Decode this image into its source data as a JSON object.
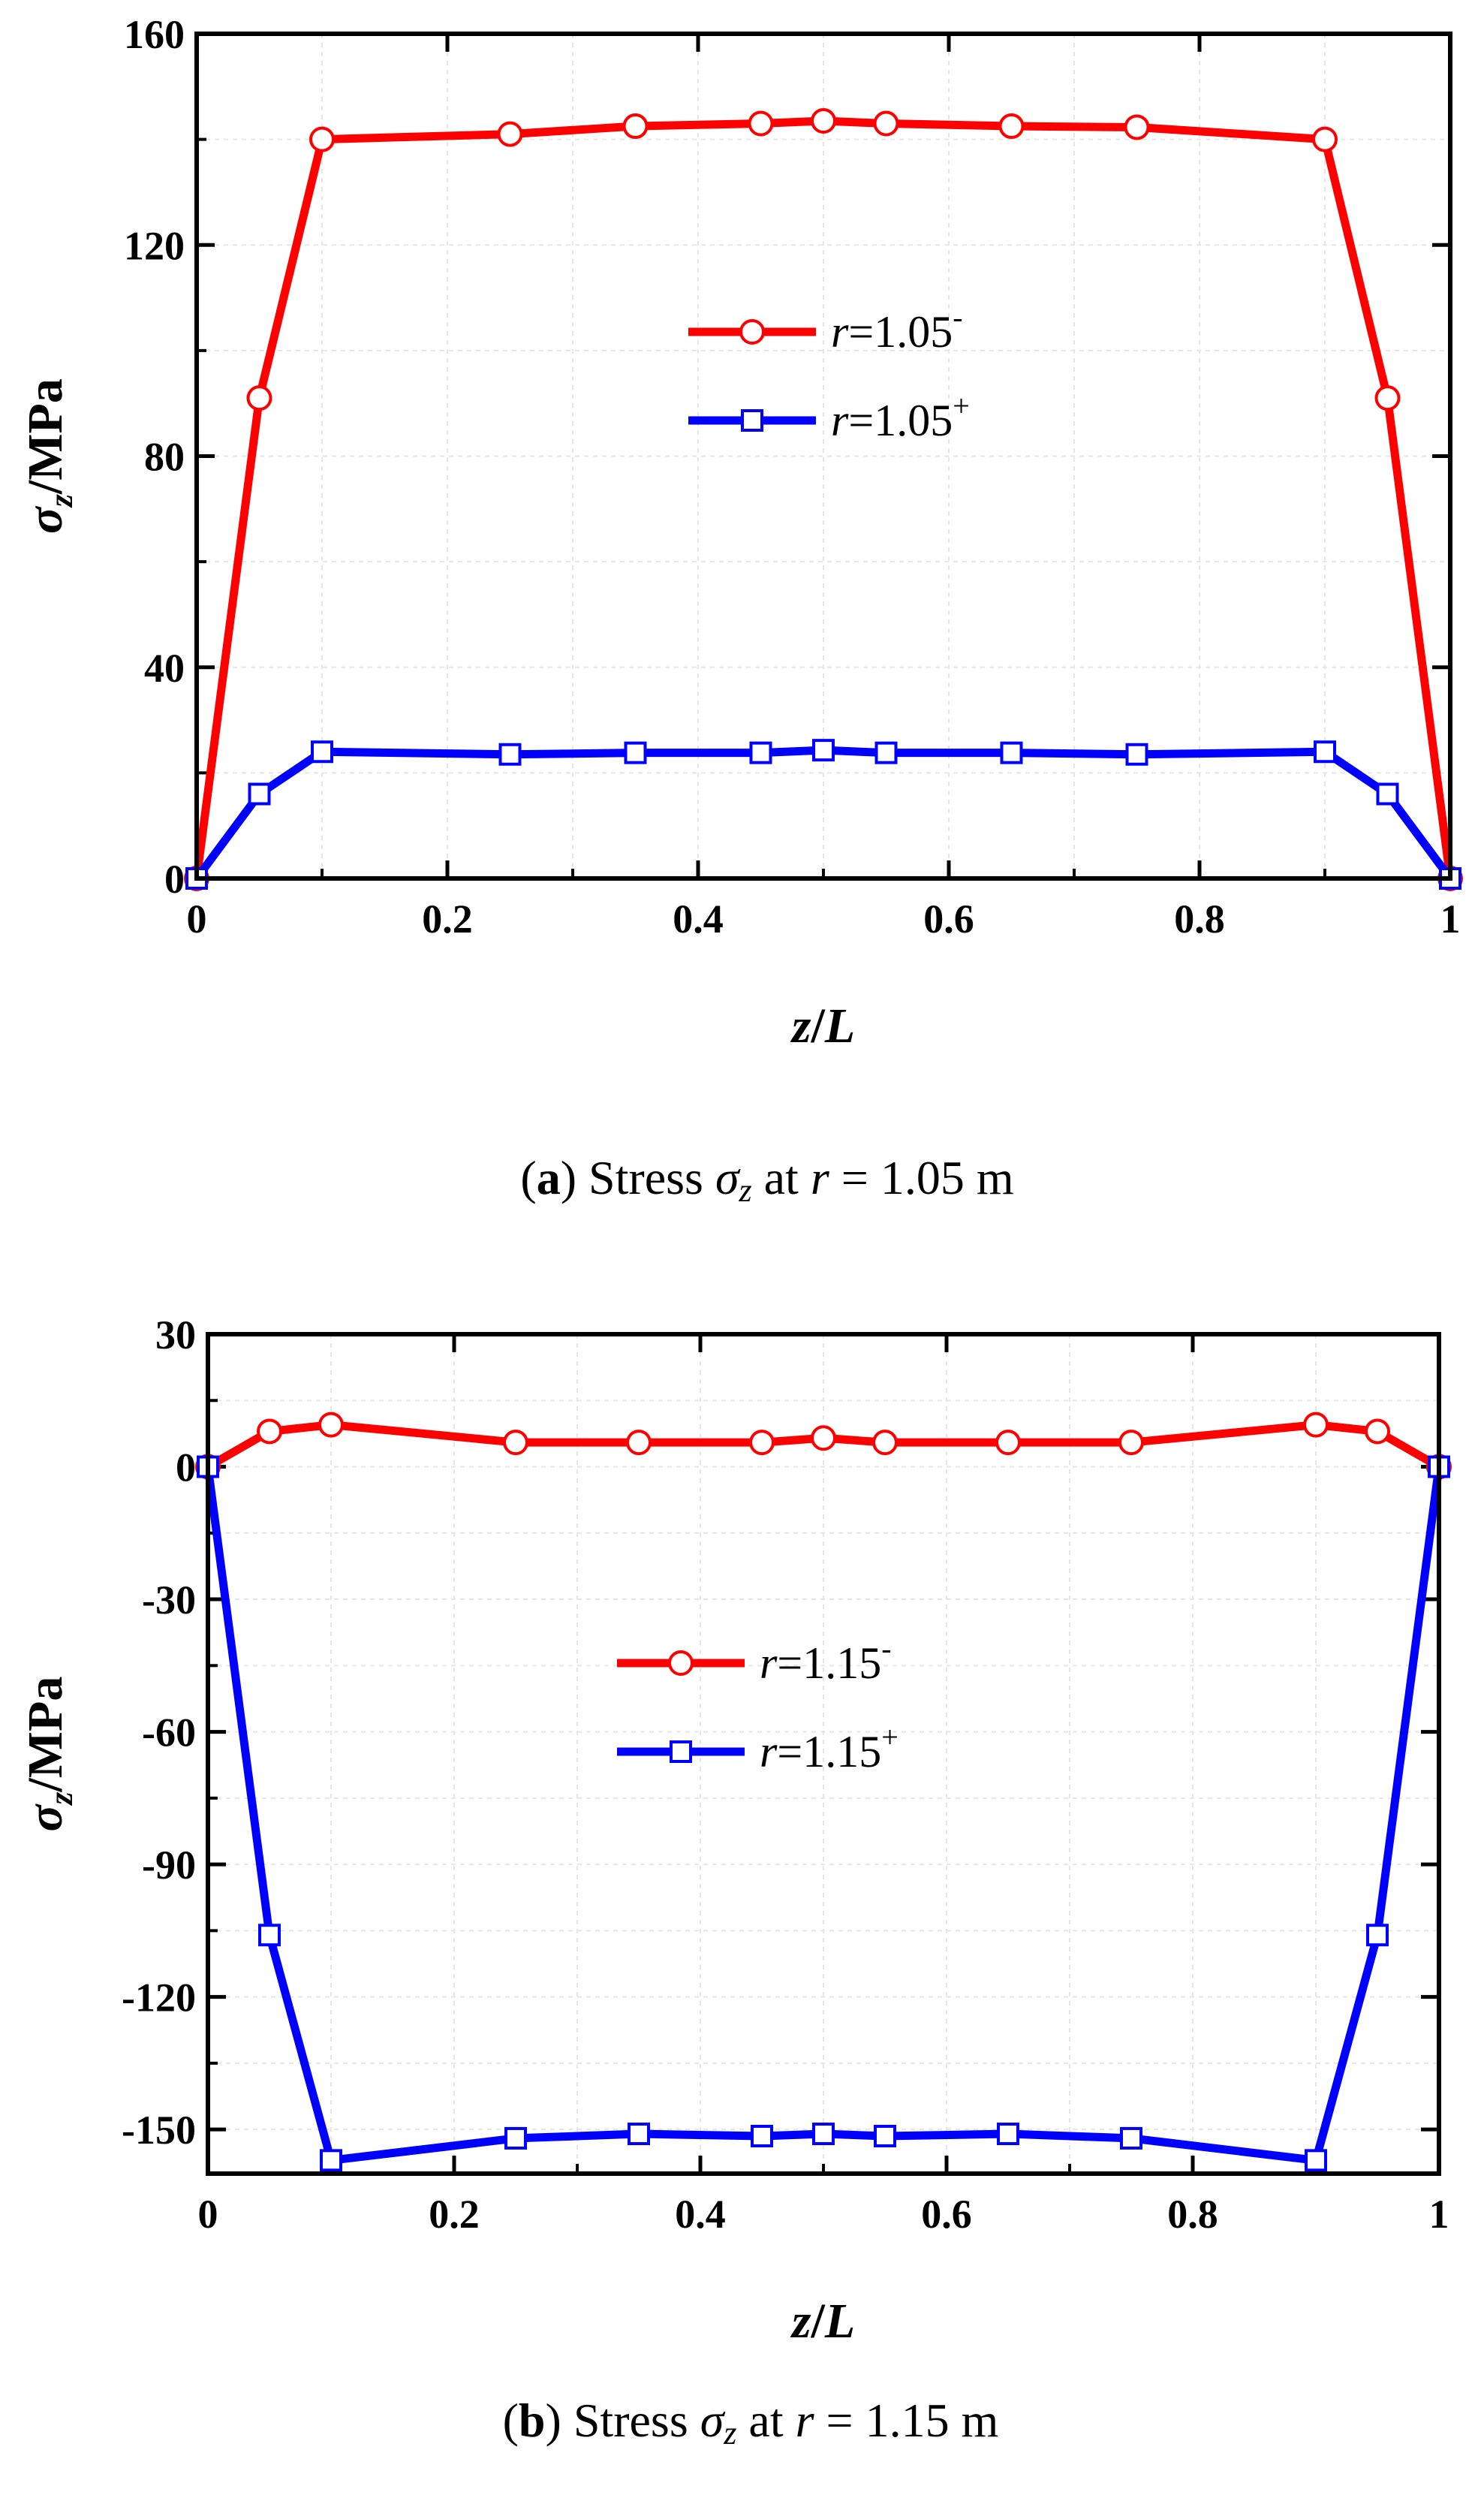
{
  "chart_data": [
    {
      "type": "line",
      "panel": "a",
      "caption": {
        "label": "a",
        "text": " Stress ",
        "sym": "σ",
        "sub": "z",
        "mid": " at ",
        "var": "r",
        "rest": " = 1.05 m"
      },
      "xlabel": {
        "var": "z",
        "slash": "/",
        "den": "L"
      },
      "ylabel": {
        "sym": "σ",
        "sub": "z",
        "rest": "/MPa"
      },
      "xlim": [
        0,
        1
      ],
      "ylim": [
        0,
        160
      ],
      "xticks": [
        0,
        0.2,
        0.4,
        0.6,
        0.8,
        1
      ],
      "xtick_labels": [
        "0",
        "0.2",
        "0.4",
        "0.6",
        "0.8",
        "1"
      ],
      "yticks": [
        0,
        40,
        80,
        120,
        160
      ],
      "ytick_labels": [
        "0",
        "40",
        "80",
        "120",
        "160"
      ],
      "grid": true,
      "legend_position": "center",
      "series": [
        {
          "name": "r=1.05-",
          "var": "r",
          "value": "=1.05",
          "sup": "-",
          "color": "#ff0000",
          "marker": "circle",
          "x": [
            0,
            0.05,
            0.1,
            0.25,
            0.35,
            0.45,
            0.5,
            0.55,
            0.65,
            0.75,
            0.9,
            0.95,
            1
          ],
          "y": [
            0,
            91,
            140,
            141,
            142.5,
            143,
            143.5,
            143,
            142.5,
            142.3,
            140,
            91,
            0
          ]
        },
        {
          "name": "r=1.05+",
          "var": "r",
          "value": "=1.05",
          "sup": "+",
          "color": "#0000ff",
          "marker": "square",
          "x": [
            0,
            0.05,
            0.1,
            0.25,
            0.35,
            0.45,
            0.5,
            0.55,
            0.65,
            0.75,
            0.9,
            0.95,
            1
          ],
          "y": [
            0,
            16,
            24,
            23.5,
            23.8,
            23.8,
            24.3,
            23.8,
            23.8,
            23.5,
            24,
            16,
            0
          ]
        }
      ]
    },
    {
      "type": "line",
      "panel": "b",
      "caption": {
        "label": "b",
        "text": " Stress ",
        "sym": "σ",
        "sub": "z",
        "mid": " at ",
        "var": "r",
        "rest": " = 1.15 m"
      },
      "xlabel": {
        "var": "z",
        "slash": "/",
        "den": "L"
      },
      "ylabel": {
        "sym": "σ",
        "sub": "z",
        "rest": "/MPa"
      },
      "xlim": [
        0,
        1
      ],
      "ylim": [
        -160,
        30
      ],
      "xticks": [
        0,
        0.2,
        0.4,
        0.6,
        0.8,
        1
      ],
      "xtick_labels": [
        "0",
        "0.2",
        "0.4",
        "0.6",
        "0.8",
        "1"
      ],
      "yticks": [
        30,
        0,
        -30,
        -60,
        -90,
        -120,
        -150
      ],
      "ytick_labels": [
        "30",
        "0",
        "-30",
        "-60",
        "-90",
        "-120",
        "-150"
      ],
      "grid": true,
      "legend_position": "center",
      "series": [
        {
          "name": "r=1.15-",
          "var": "r",
          "value": "=1.15",
          "sup": "-",
          "color": "#ff0000",
          "marker": "circle",
          "x": [
            0,
            0.05,
            0.1,
            0.25,
            0.35,
            0.45,
            0.5,
            0.55,
            0.65,
            0.75,
            0.9,
            0.95,
            1
          ],
          "y": [
            0,
            8,
            9.5,
            5.5,
            5.5,
            5.5,
            6.5,
            5.5,
            5.5,
            5.5,
            9.5,
            8,
            0
          ]
        },
        {
          "name": "r=1.15+",
          "var": "r",
          "value": "=1.15",
          "sup": "+",
          "color": "#0000ff",
          "marker": "square",
          "x": [
            0,
            0.05,
            0.1,
            0.25,
            0.35,
            0.45,
            0.5,
            0.55,
            0.65,
            0.75,
            0.9,
            0.95,
            1
          ],
          "y": [
            0,
            -106,
            -157,
            -152,
            -151,
            -151.5,
            -151,
            -151.5,
            -151,
            -152,
            -157,
            -106,
            0
          ]
        }
      ]
    }
  ]
}
